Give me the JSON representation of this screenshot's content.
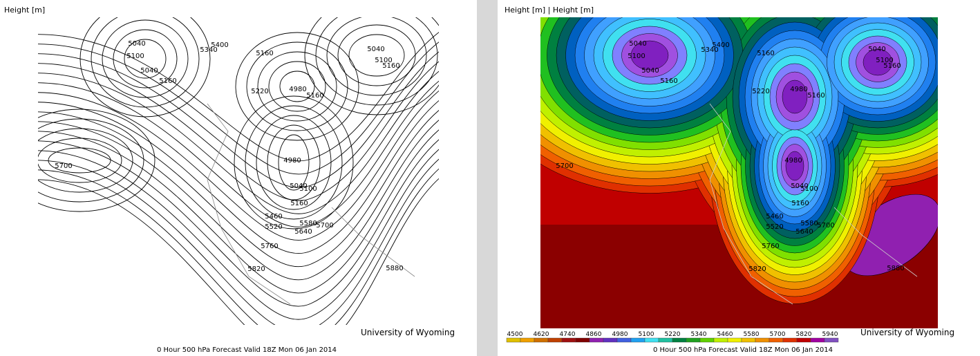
{
  "left": {
    "title": "Height [m]",
    "credit": "University of Wyoming",
    "footer": "0 Hour 500 hPa Forecast Valid 18Z Mon 06 Jan 2014"
  },
  "right": {
    "title": "Height [m] | Height [m]",
    "credit": "University of Wyoming",
    "footer": "0 Hour 500 hPa Forecast Valid 18Z Mon 06 Jan 2014"
  },
  "contour_labels": [
    "5040",
    "5100",
    "5040",
    "5160",
    "5340",
    "5400",
    "5160",
    "5040",
    "5100",
    "5160",
    "4980",
    "5160",
    "5220",
    "5700",
    "4980",
    "5040",
    "5100",
    "5160",
    "5460",
    "5520",
    "5580",
    "5700",
    "5640",
    "5760",
    "5820",
    "5880"
  ],
  "colorbar": {
    "labels": [
      "4500",
      "4620",
      "4740",
      "4860",
      "4980",
      "5100",
      "5220",
      "5340",
      "5460",
      "5580",
      "5700",
      "5820",
      "5940"
    ]
  }
}
